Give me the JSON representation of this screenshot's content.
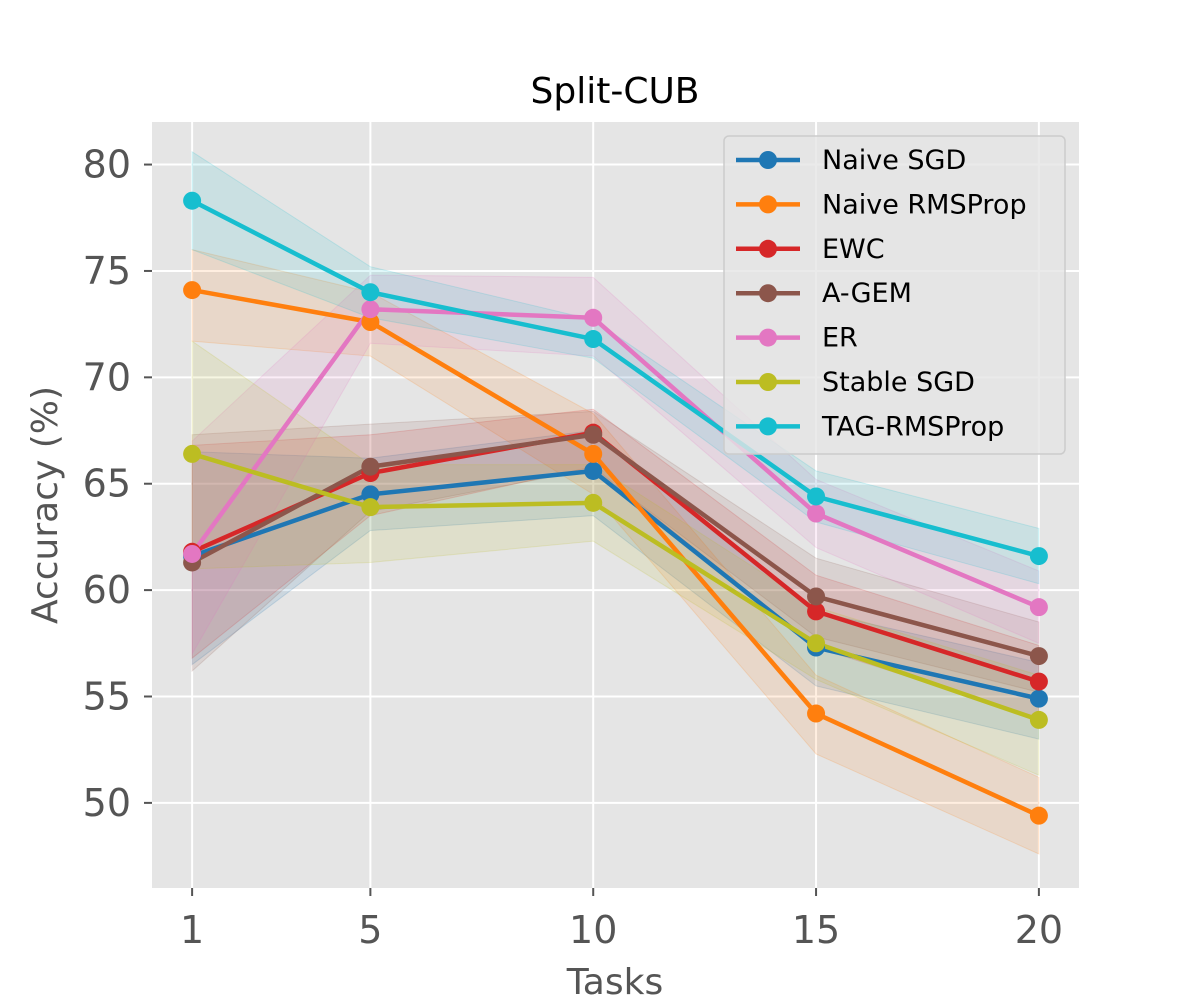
{
  "chart_data": {
    "type": "line",
    "title": "Split-CUB",
    "xlabel": "Tasks",
    "ylabel": "Accuracy (%)",
    "x": [
      1,
      5,
      10,
      15,
      20
    ],
    "xticks": [
      "1",
      "5",
      "10",
      "15",
      "20"
    ],
    "yticks": [
      "50",
      "55",
      "60",
      "65",
      "70",
      "75",
      "80"
    ],
    "xlim": [
      0.1,
      20.9
    ],
    "ylim": [
      46,
      82
    ],
    "grid": true,
    "legend_position": "top-right",
    "series": [
      {
        "name": "Naive SGD",
        "color": "#1f77b4",
        "values": [
          61.6,
          64.5,
          65.6,
          57.3,
          54.9
        ],
        "lower": [
          56.5,
          62.8,
          63.5,
          55.5,
          53.0
        ],
        "upper": [
          66.5,
          66.2,
          67.5,
          59.0,
          56.6
        ]
      },
      {
        "name": "Naive RMSProp",
        "color": "#ff7f0e",
        "values": [
          74.1,
          72.6,
          66.4,
          54.2,
          49.4
        ],
        "lower": [
          71.7,
          71.0,
          64.5,
          52.3,
          47.6
        ],
        "upper": [
          76.0,
          74.0,
          68.3,
          56.0,
          51.2
        ]
      },
      {
        "name": "EWC",
        "color": "#d62728",
        "values": [
          61.8,
          65.5,
          67.4,
          59.0,
          55.7
        ],
        "lower": [
          56.8,
          63.5,
          65.8,
          57.3,
          54.0
        ],
        "upper": [
          66.8,
          67.3,
          68.5,
          60.7,
          57.4
        ]
      },
      {
        "name": "A-GEM",
        "color": "#8c564b",
        "values": [
          61.3,
          65.8,
          67.3,
          59.7,
          56.9
        ],
        "lower": [
          56.2,
          63.7,
          65.7,
          57.8,
          55.2
        ],
        "upper": [
          67.3,
          67.8,
          68.4,
          61.5,
          58.5
        ]
      },
      {
        "name": "ER",
        "color": "#e377c2",
        "values": [
          61.7,
          73.2,
          72.8,
          63.6,
          59.2
        ],
        "lower": [
          57.0,
          71.6,
          71.0,
          62.0,
          57.5
        ],
        "upper": [
          67.0,
          74.8,
          74.7,
          65.2,
          60.9
        ]
      },
      {
        "name": "Stable SGD",
        "color": "#bcbd22",
        "values": [
          66.4,
          63.9,
          64.1,
          57.5,
          53.9
        ],
        "lower": [
          61.0,
          61.3,
          62.3,
          55.8,
          51.3
        ],
        "upper": [
          71.7,
          65.9,
          65.9,
          59.2,
          56.0
        ]
      },
      {
        "name": "TAG-RMSProp",
        "color": "#17becf",
        "values": [
          78.3,
          74.0,
          71.8,
          64.4,
          61.6
        ],
        "lower": [
          76.0,
          72.8,
          70.9,
          63.2,
          60.3
        ],
        "upper": [
          80.6,
          75.2,
          72.7,
          65.6,
          62.9
        ]
      }
    ]
  }
}
